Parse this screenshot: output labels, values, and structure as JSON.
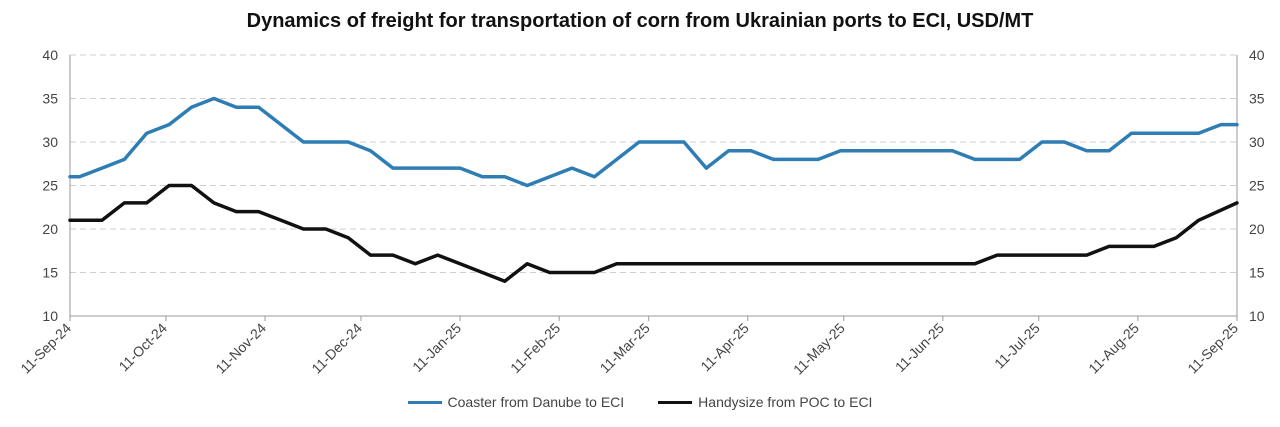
{
  "chart_data": {
    "type": "line",
    "title": "Dynamics of freight for transportation of corn from Ukrainian ports to ECI, USD/MT",
    "ylim": [
      10,
      40
    ],
    "y_ticks": [
      "10",
      "15",
      "20",
      "25",
      "30",
      "35",
      "40"
    ],
    "y_axis_both_sides": true,
    "grid": "horizontal dashed",
    "legend_position": "bottom",
    "x_tick_labels": [
      "11-Sep-24",
      "11-Oct-24",
      "11-Nov-24",
      "11-Dec-24",
      "11-Jan-25",
      "11-Feb-25",
      "11-Mar-25",
      "11-Apr-25",
      "11-May-25",
      "11-Jun-25",
      "11-Jul-25",
      "11-Aug-25",
      "11-Sep-25"
    ],
    "x_range": [
      "11-Sep-24",
      "11-Sep-25"
    ],
    "series": [
      {
        "name": "Coaster from Danube to ECI",
        "color": "#2e7db5",
        "points": [
          [
            "11-Sep-24",
            26
          ],
          [
            "14-Sep-24",
            26
          ],
          [
            "21-Sep-24",
            27
          ],
          [
            "28-Sep-24",
            28
          ],
          [
            "5-Oct-24",
            31
          ],
          [
            "12-Oct-24",
            32
          ],
          [
            "19-Oct-24",
            34
          ],
          [
            "26-Oct-24",
            35
          ],
          [
            "2-Nov-24",
            34
          ],
          [
            "9-Nov-24",
            34
          ],
          [
            "23-Nov-24",
            30
          ],
          [
            "7-Dec-24",
            30
          ],
          [
            "14-Dec-24",
            29
          ],
          [
            "21-Dec-24",
            27
          ],
          [
            "11-Jan-25",
            27
          ],
          [
            "18-Jan-25",
            26
          ],
          [
            "25-Jan-25",
            26
          ],
          [
            "1-Feb-25",
            25
          ],
          [
            "15-Feb-25",
            27
          ],
          [
            "22-Feb-25",
            26
          ],
          [
            "8-Mar-25",
            30
          ],
          [
            "22-Mar-25",
            30
          ],
          [
            "29-Mar-25",
            27
          ],
          [
            "5-Apr-25",
            29
          ],
          [
            "12-Apr-25",
            29
          ],
          [
            "19-Apr-25",
            28
          ],
          [
            "3-May-25",
            28
          ],
          [
            "10-May-25",
            29
          ],
          [
            "14-Jun-25",
            29
          ],
          [
            "21-Jun-25",
            28
          ],
          [
            "5-Jul-25",
            28
          ],
          [
            "12-Jul-25",
            30
          ],
          [
            "19-Jul-25",
            30
          ],
          [
            "26-Jul-25",
            29
          ],
          [
            "2-Aug-25",
            29
          ],
          [
            "9-Aug-25",
            31
          ],
          [
            "30-Aug-25",
            31
          ],
          [
            "6-Sep-25",
            32
          ],
          [
            "11-Sep-25",
            32
          ]
        ]
      },
      {
        "name": "Handysize from POC to ECI",
        "color": "#111111",
        "points": [
          [
            "11-Sep-24",
            21
          ],
          [
            "21-Sep-24",
            21
          ],
          [
            "28-Sep-24",
            23
          ],
          [
            "5-Oct-24",
            23
          ],
          [
            "12-Oct-24",
            25
          ],
          [
            "19-Oct-24",
            25
          ],
          [
            "26-Oct-24",
            23
          ],
          [
            "2-Nov-24",
            22
          ],
          [
            "9-Nov-24",
            22
          ],
          [
            "16-Nov-24",
            21
          ],
          [
            "23-Nov-24",
            20
          ],
          [
            "30-Nov-24",
            20
          ],
          [
            "7-Dec-24",
            19
          ],
          [
            "14-Dec-24",
            17
          ],
          [
            "21-Dec-24",
            17
          ],
          [
            "28-Dec-24",
            16
          ],
          [
            "4-Jan-25",
            17
          ],
          [
            "11-Jan-25",
            16
          ],
          [
            "18-Jan-25",
            15
          ],
          [
            "25-Jan-25",
            14
          ],
          [
            "1-Feb-25",
            16
          ],
          [
            "8-Feb-25",
            15
          ],
          [
            "22-Feb-25",
            15
          ],
          [
            "1-Mar-25",
            16
          ],
          [
            "21-Jun-25",
            16
          ],
          [
            "28-Jun-25",
            17
          ],
          [
            "26-Jul-25",
            17
          ],
          [
            "2-Aug-25",
            18
          ],
          [
            "16-Aug-25",
            18
          ],
          [
            "23-Aug-25",
            19
          ],
          [
            "30-Aug-25",
            21
          ],
          [
            "11-Sep-25",
            23
          ]
        ]
      }
    ]
  }
}
